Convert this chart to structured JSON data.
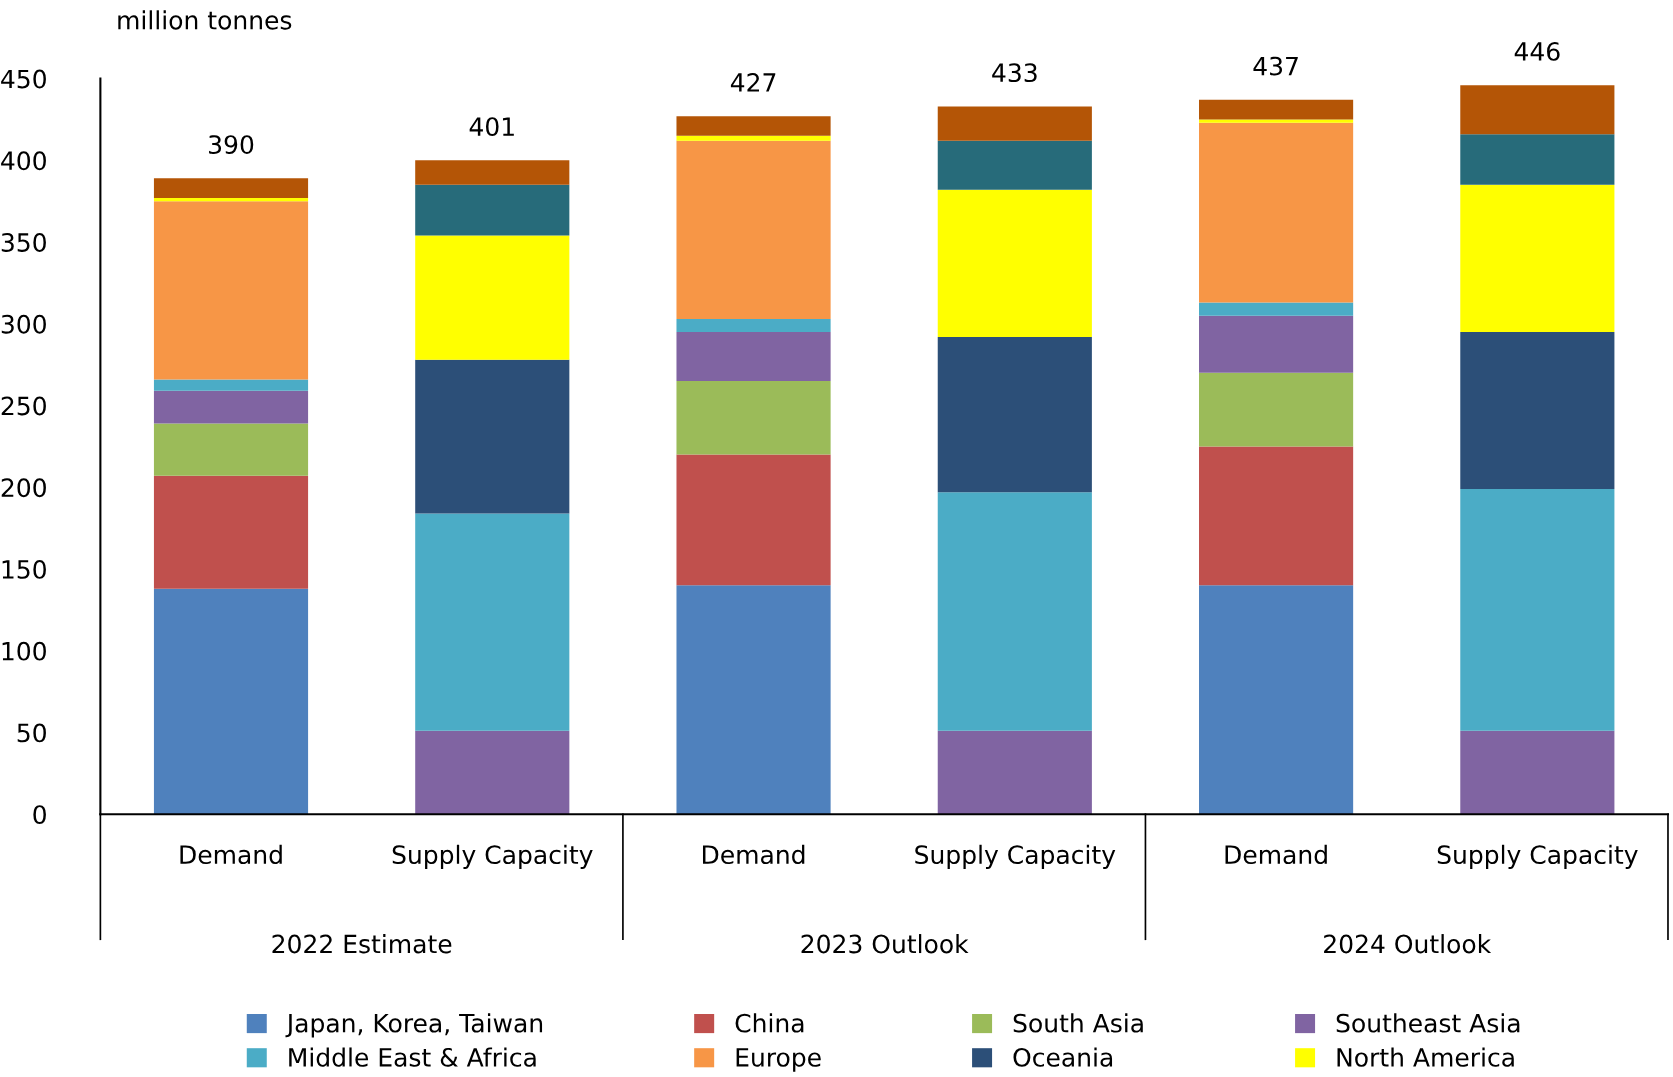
{
  "chart_data": {
    "type": "bar",
    "stacked": true,
    "ylabel": "million tonnes",
    "categories": [
      "Demand",
      "Supply Capacity",
      "Demand",
      "Supply Capacity",
      "Demand",
      "Supply Capacity"
    ],
    "annotations": [
      "2022 Estimate",
      "2023 Outlook",
      "2024 Outlook"
    ],
    "series": [
      {
        "name": "Japan, Korea, Taiwan",
        "color": "#4f81bd",
        "values": [
          138,
          null,
          140,
          null,
          140,
          null
        ]
      },
      {
        "name": "China",
        "color": "#c0504d",
        "values": [
          69,
          null,
          80,
          null,
          85,
          null
        ]
      },
      {
        "name": "South Asia",
        "color": "#9bbb59",
        "values": [
          32,
          null,
          45,
          null,
          45,
          null
        ]
      },
      {
        "name": "Southeast Asia",
        "color": "#8064a2",
        "values": [
          20,
          51,
          30,
          51,
          35,
          51
        ]
      },
      {
        "name": "Middle East & Africa",
        "color": "#4bacc6",
        "values": [
          7,
          133,
          8,
          146,
          8,
          148
        ]
      },
      {
        "name": "Europe",
        "color": "#f79646",
        "values": [
          109,
          null,
          109,
          null,
          110,
          null
        ]
      },
      {
        "name": "Oceania",
        "color": "#2c4f78",
        "values": [
          null,
          94,
          null,
          95,
          null,
          96
        ]
      },
      {
        "name": "North America",
        "color": "#ffff00",
        "values": [
          2,
          76,
          3,
          90,
          2,
          90
        ]
      },
      {
        "color": "#276b7a",
        "values": [
          null,
          31,
          null,
          30,
          null,
          31
        ]
      },
      {
        "color": "#b45506",
        "values": [
          12,
          15,
          12,
          21,
          12,
          30
        ]
      }
    ],
    "totals": [
      "390",
      "401",
      "427",
      "433",
      "437",
      "446"
    ],
    "ylim": [
      0,
      450
    ],
    "yticks": [
      0,
      50,
      100,
      150,
      200,
      250,
      300,
      350,
      400,
      450
    ],
    "grid": false,
    "legend": "bottom"
  }
}
